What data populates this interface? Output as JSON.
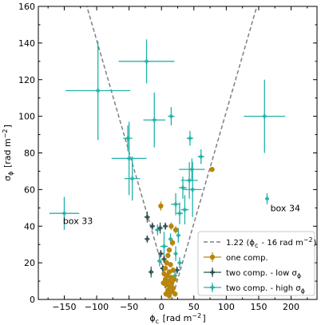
{
  "chart_data": {
    "type": "scatter",
    "xlabel": "ϕ_c [rad m⁻²]",
    "ylabel": "σ_ϕ [rad m⁻²]",
    "xlim": [
      -190,
      240
    ],
    "ylim": [
      0,
      160
    ],
    "xticks": [
      -150,
      -100,
      -50,
      0,
      50,
      100,
      150,
      200
    ],
    "yticks": [
      0,
      20,
      40,
      60,
      80,
      100,
      120,
      140,
      160
    ],
    "grid": false,
    "legend_position": "bottom-right",
    "reference_line": {
      "label": "1.22 (ϕ_c - 16 rad m⁻²)",
      "vertex_x": 16,
      "slope": 1.22,
      "color": "#808080",
      "style": "dashed"
    },
    "annotations": [
      {
        "text": "box 33",
        "x": -152,
        "y": 43
      },
      {
        "text": "box 34",
        "x": 168,
        "y": 50
      }
    ],
    "series": [
      {
        "name": "one comp.",
        "color": "#b8860b",
        "marker": "circle",
        "points": [
          {
            "x": -1,
            "y": 51,
            "xerr": 2,
            "yerr": 2.5
          },
          {
            "x": 78,
            "y": 71,
            "xerr": 3,
            "yerr": 1
          },
          {
            "x": 22,
            "y": 38,
            "xerr": 2,
            "yerr": 2
          },
          {
            "x": 15,
            "y": 40,
            "xerr": 2,
            "yerr": 2
          },
          {
            "x": 17,
            "y": 31,
            "xerr": 2,
            "yerr": 2
          },
          {
            "x": 12,
            "y": 27,
            "xerr": 2,
            "yerr": 1.5
          },
          {
            "x": 10,
            "y": 24,
            "xerr": 2,
            "yerr": 1.5
          },
          {
            "x": 8,
            "y": 20,
            "xerr": 2,
            "yerr": 1.5
          },
          {
            "x": 14,
            "y": 19,
            "xerr": 2,
            "yerr": 1.5
          },
          {
            "x": 6,
            "y": 17,
            "xerr": 2,
            "yerr": 1.5
          },
          {
            "x": 12,
            "y": 15,
            "xerr": 2,
            "yerr": 1.5
          },
          {
            "x": 18,
            "y": 16,
            "xerr": 2,
            "yerr": 1.5
          },
          {
            "x": 4,
            "y": 14,
            "xerr": 2,
            "yerr": 1.5
          },
          {
            "x": 9,
            "y": 13,
            "xerr": 2,
            "yerr": 1.5
          },
          {
            "x": 15,
            "y": 12,
            "xerr": 2,
            "yerr": 1.5
          },
          {
            "x": 20,
            "y": 11,
            "xerr": 2,
            "yerr": 1.5
          },
          {
            "x": 6,
            "y": 11,
            "xerr": 2,
            "yerr": 1.5
          },
          {
            "x": 11,
            "y": 10,
            "xerr": 2,
            "yerr": 1.5
          },
          {
            "x": 16,
            "y": 9,
            "xerr": 2,
            "yerr": 1.5
          },
          {
            "x": 3,
            "y": 9,
            "xerr": 2,
            "yerr": 1.5
          },
          {
            "x": 8,
            "y": 8,
            "xerr": 2,
            "yerr": 1.5
          },
          {
            "x": 13,
            "y": 7,
            "xerr": 2,
            "yerr": 1.5
          },
          {
            "x": 18,
            "y": 6,
            "xerr": 2,
            "yerr": 1.5
          },
          {
            "x": 10,
            "y": 5,
            "xerr": 2,
            "yerr": 1.5
          },
          {
            "x": 14,
            "y": 4,
            "xerr": 2,
            "yerr": 1.5
          },
          {
            "x": 7,
            "y": 3,
            "xerr": 2,
            "yerr": 1.5
          },
          {
            "x": 21,
            "y": 3,
            "xerr": 2,
            "yerr": 1.5
          },
          {
            "x": 12,
            "y": 2,
            "xerr": 2,
            "yerr": 1.5
          }
        ]
      },
      {
        "name": "two comp. - low σ_ϕ",
        "color": "#2f4f4f",
        "marker": "plus",
        "points": [
          {
            "x": -22,
            "y": 45,
            "xerr": 4,
            "yerr": 3
          },
          {
            "x": -14,
            "y": 40,
            "xerr": 3,
            "yerr": 2
          },
          {
            "x": -22,
            "y": 33,
            "xerr": 3,
            "yerr": 2
          },
          {
            "x": -2,
            "y": 39,
            "xerr": 3,
            "yerr": 3
          },
          {
            "x": 6,
            "y": 40,
            "xerr": 3,
            "yerr": 2
          },
          {
            "x": -1,
            "y": 25,
            "xerr": 4,
            "yerr": 2
          },
          {
            "x": 4,
            "y": 22,
            "xerr": 3,
            "yerr": 2
          },
          {
            "x": -16,
            "y": 15,
            "xerr": 3,
            "yerr": 3
          },
          {
            "x": 2,
            "y": 17,
            "xerr": 3,
            "yerr": 2
          },
          {
            "x": 24,
            "y": 16,
            "xerr": 3,
            "yerr": 2
          },
          {
            "x": 6,
            "y": 8,
            "xerr": 3,
            "yerr": 2
          },
          {
            "x": 18,
            "y": 6,
            "xerr": 3,
            "yerr": 2
          },
          {
            "x": 9,
            "y": 4,
            "xerr": 3,
            "yerr": 2
          }
        ]
      },
      {
        "name": "two comp. - high σ_ϕ",
        "color": "#20b2aa",
        "marker": "plus",
        "points": [
          {
            "x": -150,
            "y": 47,
            "xerr": 23,
            "yerr": 9
          },
          {
            "x": 163,
            "y": 55,
            "xerr": 2,
            "yerr": 3
          },
          {
            "x": -98,
            "y": 114,
            "xerr": 50,
            "yerr": 27
          },
          {
            "x": -23,
            "y": 130,
            "xerr": 43,
            "yerr": 12
          },
          {
            "x": 159,
            "y": 100,
            "xerr": 32,
            "yerr": 20
          },
          {
            "x": -11,
            "y": 98,
            "xerr": 17,
            "yerr": 15
          },
          {
            "x": 15,
            "y": 100,
            "xerr": 5,
            "yerr": 5
          },
          {
            "x": -52,
            "y": 88,
            "xerr": 7,
            "yerr": 7
          },
          {
            "x": -50,
            "y": 77,
            "xerr": 27,
            "yerr": 20
          },
          {
            "x": -45,
            "y": 66,
            "xerr": 12,
            "yerr": 12
          },
          {
            "x": 44,
            "y": 88,
            "xerr": 5,
            "yerr": 4
          },
          {
            "x": 61,
            "y": 78,
            "xerr": 5,
            "yerr": 4
          },
          {
            "x": 47,
            "y": 71,
            "xerr": 20,
            "yerr": 6
          },
          {
            "x": 43,
            "y": 65,
            "xerr": 13,
            "yerr": 10
          },
          {
            "x": 48,
            "y": 60,
            "xerr": 14,
            "yerr": 15
          },
          {
            "x": 33,
            "y": 61,
            "xerr": 6,
            "yerr": 6
          },
          {
            "x": 22,
            "y": 52,
            "xerr": 7,
            "yerr": 6
          },
          {
            "x": 36,
            "y": 49,
            "xerr": 6,
            "yerr": 8
          },
          {
            "x": 28,
            "y": 47,
            "xerr": 5,
            "yerr": 6
          },
          {
            "x": -6,
            "y": 38,
            "xerr": 4,
            "yerr": 3
          },
          {
            "x": 4,
            "y": 29,
            "xerr": 6,
            "yerr": 8
          },
          {
            "x": 14,
            "y": 33,
            "xerr": 3,
            "yerr": 3
          },
          {
            "x": 26,
            "y": 35,
            "xerr": 3,
            "yerr": 4
          },
          {
            "x": 22,
            "y": 25,
            "xerr": 3,
            "yerr": 4
          },
          {
            "x": -3,
            "y": 21,
            "xerr": 3,
            "yerr": 3
          },
          {
            "x": 21,
            "y": 13,
            "xerr": 3,
            "yerr": 3
          },
          {
            "x": 28,
            "y": 20,
            "xerr": 3,
            "yerr": 3
          }
        ]
      }
    ]
  }
}
